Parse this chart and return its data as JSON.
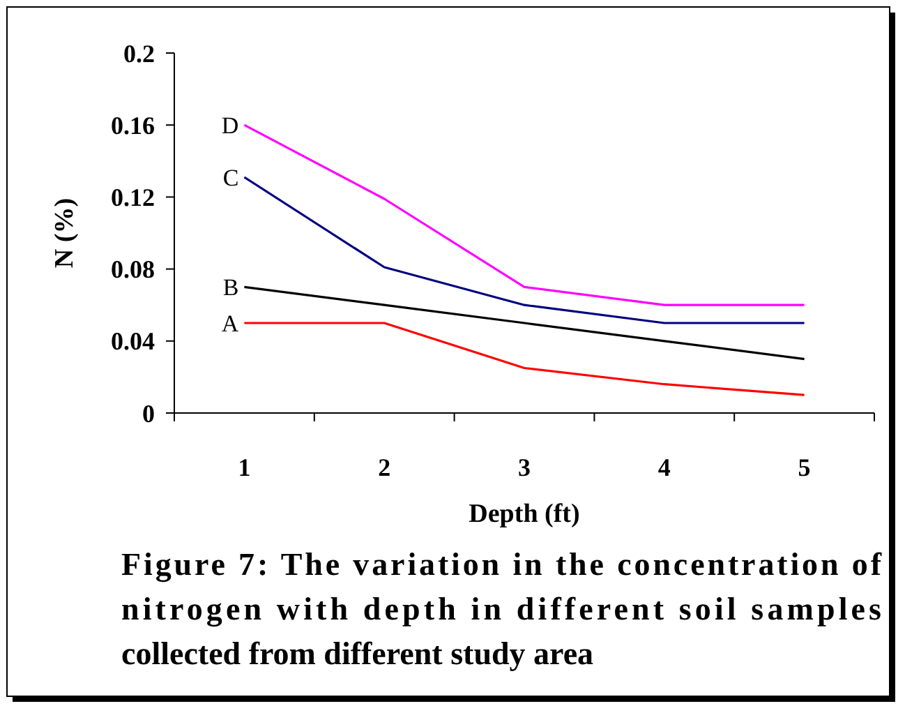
{
  "chart_data": {
    "type": "line",
    "xlabel": "Depth (ft)",
    "ylabel": "N (%)",
    "categories": [
      "1",
      "2",
      "3",
      "4",
      "5"
    ],
    "series": [
      {
        "name": "A",
        "color": "#ff0000",
        "values": [
          0.05,
          0.05,
          0.025,
          0.016,
          0.01
        ]
      },
      {
        "name": "B",
        "color": "#000000",
        "values": [
          0.07,
          0.06,
          0.05,
          0.04,
          0.03
        ]
      },
      {
        "name": "C",
        "color": "#000080",
        "values": [
          0.131,
          0.081,
          0.06,
          0.05,
          0.05
        ]
      },
      {
        "name": "D",
        "color": "#ff00ff",
        "values": [
          0.16,
          0.119,
          0.07,
          0.06,
          0.06
        ]
      }
    ],
    "ylim": [
      0,
      0.2
    ],
    "yticks": [
      0,
      0.04,
      0.08,
      0.12,
      0.16,
      0.2
    ],
    "grid": false,
    "marker": "none",
    "line_style": "solid",
    "annotations": [
      "Figure 7: The variation in the concentration of nitrogen with depth in different soil samples collected from different study area"
    ]
  }
}
